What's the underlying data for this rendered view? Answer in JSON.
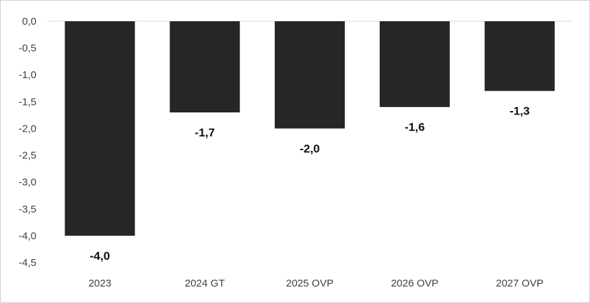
{
  "chart_data": {
    "type": "bar",
    "categories": [
      "2023",
      "2024 GT",
      "2025 OVP",
      "2026 OVP",
      "2027 OVP"
    ],
    "values": [
      -4.0,
      -1.7,
      -2.0,
      -1.6,
      -1.3
    ],
    "data_labels": [
      "-4,0",
      "-1,7",
      "-2,0",
      "-1,6",
      "-1,3"
    ],
    "y_ticks": [
      0.0,
      -0.5,
      -1.0,
      -1.5,
      -2.0,
      -2.5,
      -3.0,
      -3.5,
      -4.0,
      -4.5
    ],
    "y_tick_labels": [
      "0,0",
      "-0,5",
      "-1,0",
      "-1,5",
      "-2,0",
      "-2,5",
      "-3,0",
      "-3,5",
      "-4,0",
      "-4,5"
    ],
    "ylim": [
      -4.5,
      0.0
    ],
    "grid": false,
    "legend": "none",
    "bar_color": "#262626",
    "title": "",
    "xlabel": "",
    "ylabel": ""
  }
}
